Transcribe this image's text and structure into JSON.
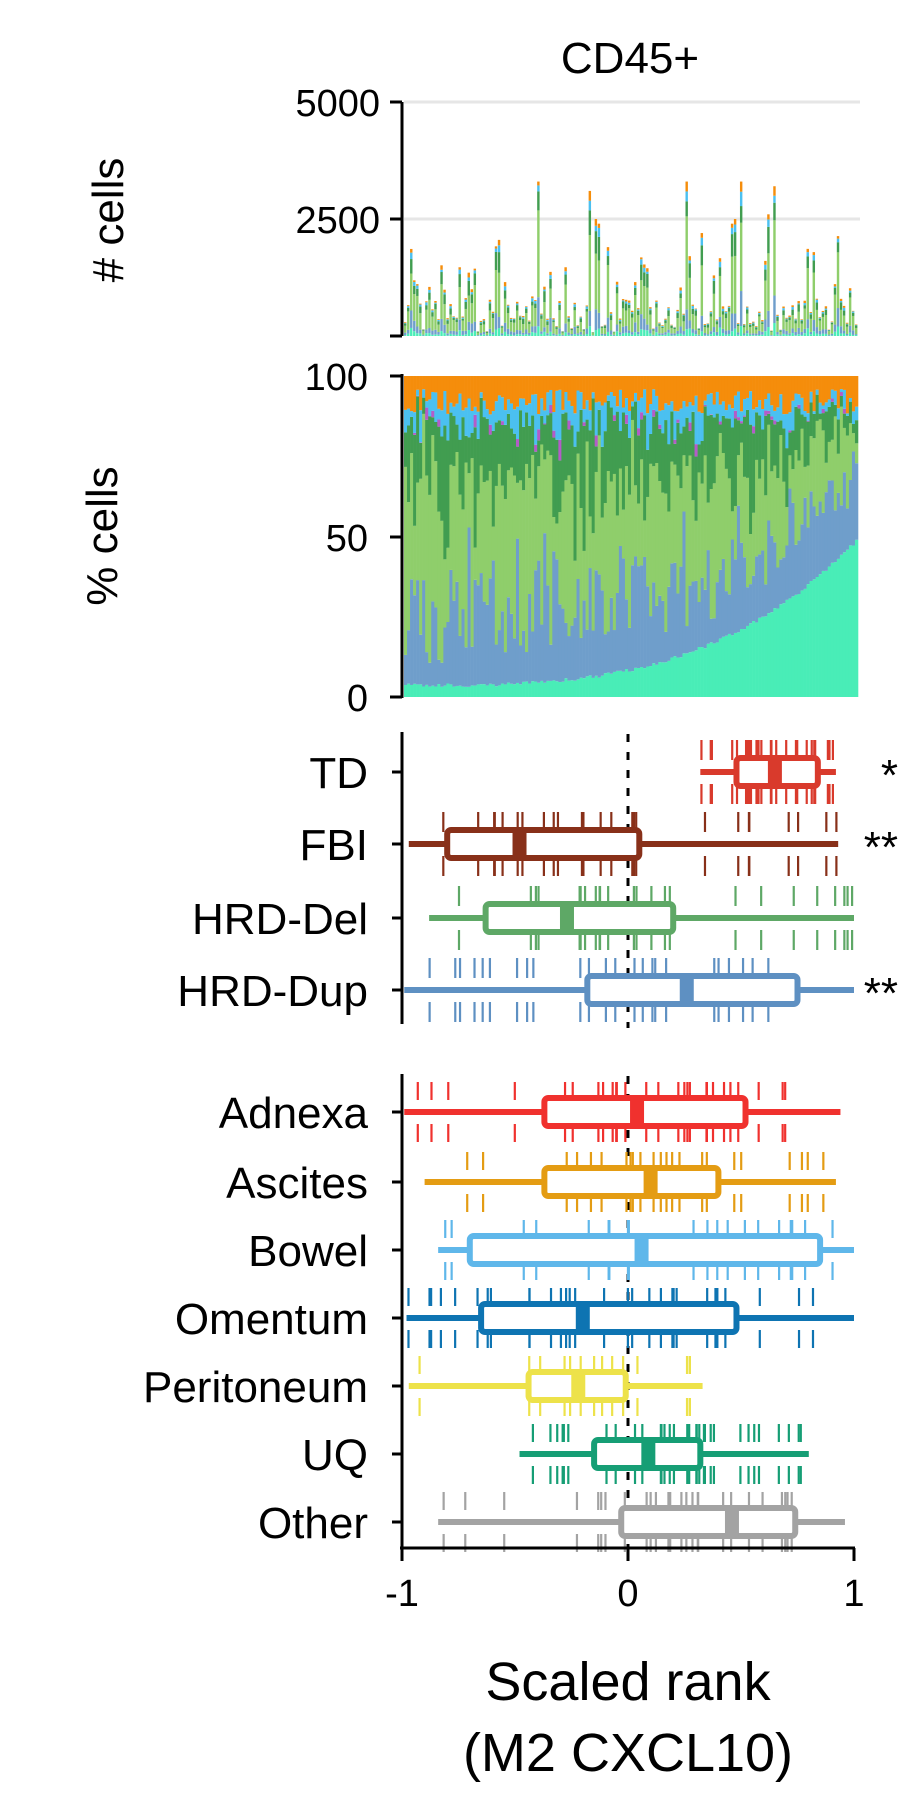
{
  "chart_data": [
    {
      "type": "bar",
      "stacked": true,
      "title": "CD45+",
      "ylabel": "# cells",
      "ylim": [
        0,
        5000
      ],
      "yticks": [
        "2500",
        "5000"
      ],
      "grid": true,
      "n_samples": 150,
      "peak_values": [
        2200,
        2500,
        2900,
        3100,
        2800,
        3200,
        2600,
        2400,
        3300,
        2700
      ],
      "series_colors": [
        "#49edb7",
        "#6f9ecb",
        "#8fce6b",
        "#419d50",
        "#4bc0f0",
        "#f58d0b"
      ]
    },
    {
      "type": "area",
      "stacked": true,
      "ylabel": "% cells",
      "ylim": [
        0,
        100
      ],
      "yticks": [
        "0",
        "50",
        "100"
      ],
      "series_colors": [
        "#49edb7",
        "#6f9ecb",
        "#8fce6b",
        "#419d50",
        "#b45cc8",
        "#4bc0f0",
        "#f58d0b"
      ],
      "bottom_series_range_pct": [
        3,
        48
      ]
    },
    {
      "type": "box",
      "categories": [
        "TD",
        "FBI",
        "HRD-Del",
        "HRD-Dup"
      ],
      "colors": [
        "#d93a2c",
        "#883019",
        "#5ea866",
        "#5e90c2"
      ],
      "boxes": [
        {
          "min": 0.32,
          "q1": 0.48,
          "median": 0.65,
          "q3": 0.84,
          "max": 0.92
        },
        {
          "min": -0.97,
          "q1": -0.8,
          "median": -0.48,
          "q3": 0.05,
          "max": 0.93
        },
        {
          "min": -0.88,
          "q1": -0.63,
          "median": -0.27,
          "q3": 0.2,
          "max": 1.0
        },
        {
          "min": -0.99,
          "q1": -0.18,
          "median": 0.26,
          "q3": 0.75,
          "max": 1.0
        }
      ],
      "significance": [
        "*",
        "**",
        "",
        "**"
      ],
      "reference_line_x": 0
    },
    {
      "type": "box",
      "categories": [
        "Adnexa",
        "Ascites",
        "Bowel",
        "Omentum",
        "Peritoneum",
        "UQ",
        "Other"
      ],
      "colors": [
        "#f0312e",
        "#e49c13",
        "#5fb7ea",
        "#0e74b2",
        "#ede24a",
        "#169e75",
        "#a3a3a3"
      ],
      "boxes": [
        {
          "min": -0.99,
          "q1": -0.37,
          "median": 0.04,
          "q3": 0.52,
          "max": 0.94
        },
        {
          "min": -0.9,
          "q1": -0.37,
          "median": 0.1,
          "q3": 0.4,
          "max": 0.92
        },
        {
          "min": -0.84,
          "q1": -0.7,
          "median": 0.06,
          "q3": 0.85,
          "max": 1.0
        },
        {
          "min": -0.98,
          "q1": -0.65,
          "median": -0.2,
          "q3": 0.48,
          "max": 1.0
        },
        {
          "min": -0.97,
          "q1": -0.44,
          "median": -0.22,
          "q3": -0.01,
          "max": 0.33
        },
        {
          "min": -0.48,
          "q1": -0.15,
          "median": 0.09,
          "q3": 0.32,
          "max": 0.8
        },
        {
          "min": -0.84,
          "q1": -0.03,
          "median": 0.46,
          "q3": 0.74,
          "max": 0.96
        }
      ],
      "reference_line_x": 0,
      "xlim": [
        -1,
        1
      ],
      "xticks": [
        "-1",
        "0",
        "1"
      ],
      "xlabel": [
        "Scaled rank",
        "(M2 CXCL10)"
      ]
    }
  ]
}
